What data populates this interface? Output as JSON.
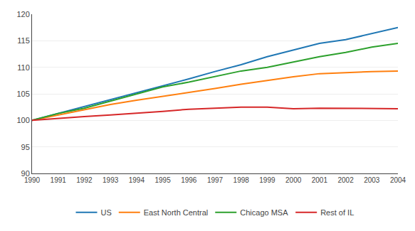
{
  "chart_data": {
    "type": "line",
    "x": [
      1990,
      1991,
      1992,
      1993,
      1994,
      1995,
      1996,
      1997,
      1998,
      1999,
      2000,
      2001,
      2002,
      2003,
      2004
    ],
    "series": [
      {
        "name": "US",
        "values": [
          100.0,
          101.3,
          102.6,
          103.9,
          105.2,
          106.5,
          107.8,
          109.2,
          110.5,
          112.0,
          113.2,
          114.5,
          115.2,
          116.3,
          117.5
        ]
      },
      {
        "name": "East North Central",
        "values": [
          100.0,
          101.0,
          102.0,
          103.0,
          103.8,
          104.5,
          105.2,
          106.0,
          106.8,
          107.5,
          108.2,
          108.8,
          109.0,
          109.2,
          109.3
        ]
      },
      {
        "name": "Chicago MSA",
        "values": [
          100.0,
          101.3,
          102.3,
          103.6,
          105.0,
          106.3,
          107.2,
          108.3,
          109.3,
          110.0,
          111.0,
          112.0,
          112.8,
          113.8,
          114.5
        ]
      },
      {
        "name": "Rest of IL",
        "values": [
          100.0,
          100.4,
          100.7,
          101.0,
          101.3,
          101.7,
          102.1,
          102.3,
          102.5,
          102.5,
          102.2,
          102.3,
          102.3,
          102.2,
          102.2
        ]
      }
    ],
    "xlim": [
      1990,
      2004
    ],
    "xticks": [
      1990,
      1991,
      1992,
      1993,
      1994,
      1995,
      1996,
      1997,
      1998,
      1999,
      2000,
      2001,
      2002,
      2003,
      2004
    ],
    "ylim": [
      90,
      120
    ],
    "yticks": [
      90,
      95,
      100,
      105,
      110,
      115,
      120
    ],
    "grid": true,
    "legend": "bottom"
  }
}
